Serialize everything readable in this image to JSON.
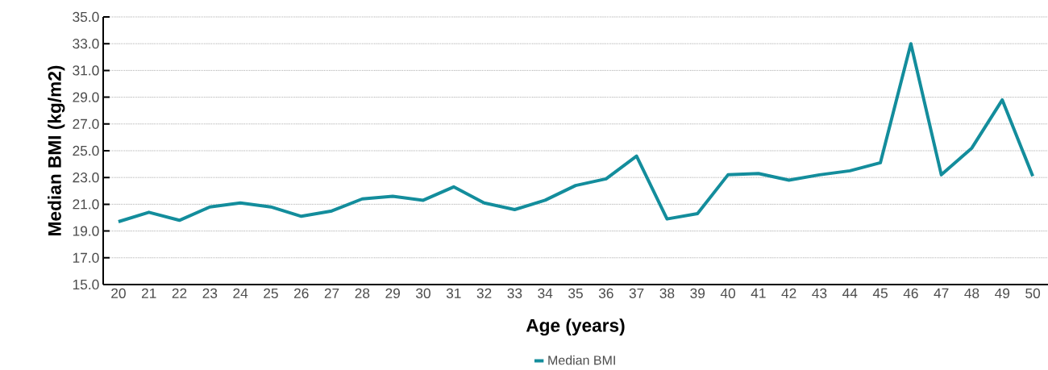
{
  "chart_data": {
    "type": "line",
    "xlabel": "Age (years)",
    "ylabel": "Median BMI (kg/m2)",
    "categories": [
      "20",
      "21",
      "22",
      "23",
      "24",
      "25",
      "26",
      "27",
      "28",
      "29",
      "30",
      "31",
      "32",
      "33",
      "34",
      "35",
      "36",
      "37",
      "38",
      "39",
      "40",
      "41",
      "42",
      "43",
      "44",
      "45",
      "46",
      "47",
      "48",
      "49",
      "50"
    ],
    "series": [
      {
        "name": "Median BMI",
        "color": "#138d9c",
        "values": [
          19.7,
          20.4,
          19.8,
          20.8,
          21.1,
          20.8,
          20.1,
          20.5,
          21.4,
          21.6,
          21.3,
          22.3,
          21.1,
          20.6,
          21.3,
          22.4,
          22.9,
          24.6,
          19.9,
          20.3,
          23.2,
          23.3,
          22.8,
          23.2,
          23.5,
          24.1,
          33.0,
          23.2,
          25.2,
          28.8,
          23.1
        ]
      }
    ],
    "ylim": [
      15,
      35
    ],
    "yticks": [
      {
        "value": 15,
        "label": "15.0"
      },
      {
        "value": 17,
        "label": "17.0"
      },
      {
        "value": 19,
        "label": "19.0"
      },
      {
        "value": 21,
        "label": "21.0"
      },
      {
        "value": 23,
        "label": "23.0"
      },
      {
        "value": 25,
        "label": "25.0"
      },
      {
        "value": 27,
        "label": "27.0"
      },
      {
        "value": 29,
        "label": "29.0"
      },
      {
        "value": 31,
        "label": "31.0"
      },
      {
        "value": 33,
        "label": "33.0"
      },
      {
        "value": 35,
        "label": "35.0"
      }
    ],
    "grid": "y",
    "legend": "bottom",
    "marker": "none",
    "line_style": "solid"
  }
}
